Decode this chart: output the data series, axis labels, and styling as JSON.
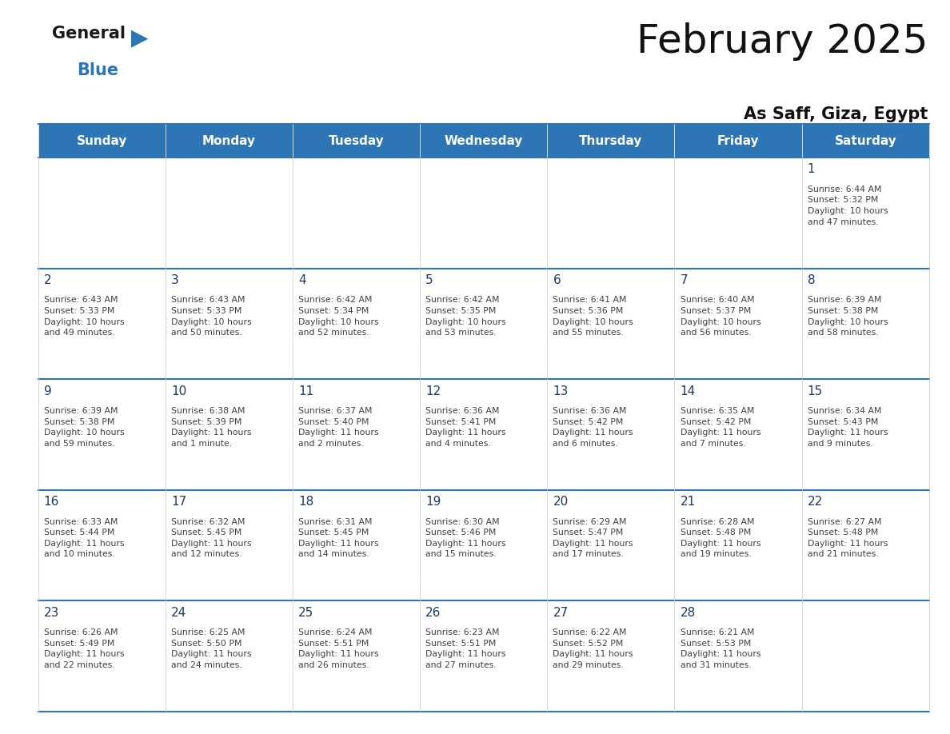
{
  "title": "February 2025",
  "subtitle": "As Saff, Giza, Egypt",
  "header_bg": "#2E75B6",
  "header_text_color": "#FFFFFF",
  "cell_bg": "#FFFFFF",
  "day_number_color": "#1F3864",
  "cell_text_color": "#404040",
  "border_color": "#2E75B6",
  "days_of_week": [
    "Sunday",
    "Monday",
    "Tuesday",
    "Wednesday",
    "Thursday",
    "Friday",
    "Saturday"
  ],
  "calendar_data": [
    [
      null,
      null,
      null,
      null,
      null,
      null,
      {
        "day": 1,
        "sunrise": "6:44 AM",
        "sunset": "5:32 PM",
        "daylight": "10 hours\nand 47 minutes."
      }
    ],
    [
      {
        "day": 2,
        "sunrise": "6:43 AM",
        "sunset": "5:33 PM",
        "daylight": "10 hours\nand 49 minutes."
      },
      {
        "day": 3,
        "sunrise": "6:43 AM",
        "sunset": "5:33 PM",
        "daylight": "10 hours\nand 50 minutes."
      },
      {
        "day": 4,
        "sunrise": "6:42 AM",
        "sunset": "5:34 PM",
        "daylight": "10 hours\nand 52 minutes."
      },
      {
        "day": 5,
        "sunrise": "6:42 AM",
        "sunset": "5:35 PM",
        "daylight": "10 hours\nand 53 minutes."
      },
      {
        "day": 6,
        "sunrise": "6:41 AM",
        "sunset": "5:36 PM",
        "daylight": "10 hours\nand 55 minutes."
      },
      {
        "day": 7,
        "sunrise": "6:40 AM",
        "sunset": "5:37 PM",
        "daylight": "10 hours\nand 56 minutes."
      },
      {
        "day": 8,
        "sunrise": "6:39 AM",
        "sunset": "5:38 PM",
        "daylight": "10 hours\nand 58 minutes."
      }
    ],
    [
      {
        "day": 9,
        "sunrise": "6:39 AM",
        "sunset": "5:38 PM",
        "daylight": "10 hours\nand 59 minutes."
      },
      {
        "day": 10,
        "sunrise": "6:38 AM",
        "sunset": "5:39 PM",
        "daylight": "11 hours\nand 1 minute."
      },
      {
        "day": 11,
        "sunrise": "6:37 AM",
        "sunset": "5:40 PM",
        "daylight": "11 hours\nand 2 minutes."
      },
      {
        "day": 12,
        "sunrise": "6:36 AM",
        "sunset": "5:41 PM",
        "daylight": "11 hours\nand 4 minutes."
      },
      {
        "day": 13,
        "sunrise": "6:36 AM",
        "sunset": "5:42 PM",
        "daylight": "11 hours\nand 6 minutes."
      },
      {
        "day": 14,
        "sunrise": "6:35 AM",
        "sunset": "5:42 PM",
        "daylight": "11 hours\nand 7 minutes."
      },
      {
        "day": 15,
        "sunrise": "6:34 AM",
        "sunset": "5:43 PM",
        "daylight": "11 hours\nand 9 minutes."
      }
    ],
    [
      {
        "day": 16,
        "sunrise": "6:33 AM",
        "sunset": "5:44 PM",
        "daylight": "11 hours\nand 10 minutes."
      },
      {
        "day": 17,
        "sunrise": "6:32 AM",
        "sunset": "5:45 PM",
        "daylight": "11 hours\nand 12 minutes."
      },
      {
        "day": 18,
        "sunrise": "6:31 AM",
        "sunset": "5:45 PM",
        "daylight": "11 hours\nand 14 minutes."
      },
      {
        "day": 19,
        "sunrise": "6:30 AM",
        "sunset": "5:46 PM",
        "daylight": "11 hours\nand 15 minutes."
      },
      {
        "day": 20,
        "sunrise": "6:29 AM",
        "sunset": "5:47 PM",
        "daylight": "11 hours\nand 17 minutes."
      },
      {
        "day": 21,
        "sunrise": "6:28 AM",
        "sunset": "5:48 PM",
        "daylight": "11 hours\nand 19 minutes."
      },
      {
        "day": 22,
        "sunrise": "6:27 AM",
        "sunset": "5:48 PM",
        "daylight": "11 hours\nand 21 minutes."
      }
    ],
    [
      {
        "day": 23,
        "sunrise": "6:26 AM",
        "sunset": "5:49 PM",
        "daylight": "11 hours\nand 22 minutes."
      },
      {
        "day": 24,
        "sunrise": "6:25 AM",
        "sunset": "5:50 PM",
        "daylight": "11 hours\nand 24 minutes."
      },
      {
        "day": 25,
        "sunrise": "6:24 AM",
        "sunset": "5:51 PM",
        "daylight": "11 hours\nand 26 minutes."
      },
      {
        "day": 26,
        "sunrise": "6:23 AM",
        "sunset": "5:51 PM",
        "daylight": "11 hours\nand 27 minutes."
      },
      {
        "day": 27,
        "sunrise": "6:22 AM",
        "sunset": "5:52 PM",
        "daylight": "11 hours\nand 29 minutes."
      },
      {
        "day": 28,
        "sunrise": "6:21 AM",
        "sunset": "5:53 PM",
        "daylight": "11 hours\nand 31 minutes."
      },
      null
    ]
  ]
}
